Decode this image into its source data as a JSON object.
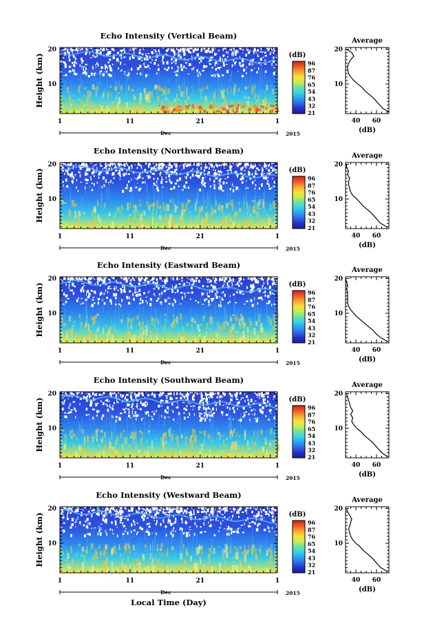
{
  "figure": {
    "xlabel": "Local Time (Day)",
    "month_label": "Dec",
    "year_label": "2015",
    "ylabel": "Height (km)",
    "colorbar_unit": "(dB)",
    "average_title": "Average",
    "average_xlabel": "(dB)"
  },
  "chart_data": [
    {
      "type": "heatmap",
      "title": "Echo Intensity (Vertical Beam)",
      "xlabel": "Dec",
      "ylabel": "Height (km)",
      "x_ticks": [
        "1",
        "11",
        "21",
        "1"
      ],
      "xlim": [
        1,
        32
      ],
      "y_ticks": [
        "10",
        "20"
      ],
      "ylim": [
        1.5,
        20.5
      ],
      "colorbar": {
        "label": "(dB)",
        "ticks": [
          "96",
          "87",
          "76",
          "65",
          "54",
          "43",
          "32",
          "21"
        ],
        "range": [
          21,
          96
        ]
      },
      "profile": {
        "title": "Average",
        "xlabel": "(dB)",
        "x_ticks": [
          "40",
          "60"
        ],
        "xlim": [
          30,
          72
        ],
        "ylim": [
          1.5,
          20.5
        ],
        "heights": [
          2,
          3,
          4,
          5,
          6,
          7,
          8,
          9,
          10,
          11,
          12,
          13,
          14,
          15,
          16,
          17,
          18,
          19,
          20
        ],
        "values": [
          72,
          66,
          63,
          60,
          57,
          53,
          49,
          46,
          42,
          38,
          35,
          33,
          32,
          32,
          33,
          35,
          38,
          36,
          31
        ]
      }
    },
    {
      "type": "heatmap",
      "title": "Echo Intensity (Northward Beam)",
      "xlabel": "Dec",
      "ylabel": "Height (km)",
      "x_ticks": [
        "1",
        "11",
        "21",
        "1"
      ],
      "xlim": [
        1,
        32
      ],
      "y_ticks": [
        "10",
        "20"
      ],
      "ylim": [
        1.5,
        20.5
      ],
      "colorbar": {
        "label": "(dB)",
        "ticks": [
          "96",
          "87",
          "76",
          "65",
          "54",
          "43",
          "32",
          "21"
        ],
        "range": [
          21,
          96
        ]
      },
      "profile": {
        "title": "Average",
        "xlabel": "(dB)",
        "x_ticks": [
          "40",
          "60"
        ],
        "xlim": [
          30,
          72
        ],
        "ylim": [
          1.5,
          20.5
        ],
        "heights": [
          2,
          3,
          4,
          5,
          6,
          7,
          8,
          9,
          10,
          11,
          12,
          13,
          14,
          15,
          16,
          17,
          18,
          19,
          20
        ],
        "values": [
          70,
          64,
          61,
          58,
          55,
          51,
          47,
          44,
          41,
          37,
          35,
          34,
          33,
          33,
          34,
          32,
          33,
          31,
          31
        ]
      }
    },
    {
      "type": "heatmap",
      "title": "Echo Intensity (Eastward Beam)",
      "xlabel": "Dec",
      "ylabel": "Height (km)",
      "x_ticks": [
        "1",
        "11",
        "21",
        "1"
      ],
      "xlim": [
        1,
        32
      ],
      "y_ticks": [
        "10",
        "20"
      ],
      "ylim": [
        1.5,
        20.5
      ],
      "colorbar": {
        "label": "(dB)",
        "ticks": [
          "96",
          "87",
          "76",
          "65",
          "54",
          "43",
          "32",
          "21"
        ],
        "range": [
          21,
          96
        ]
      },
      "profile": {
        "title": "Average",
        "xlabel": "(dB)",
        "x_ticks": [
          "40",
          "60"
        ],
        "xlim": [
          30,
          72
        ],
        "ylim": [
          1.5,
          20.5
        ],
        "heights": [
          2,
          3,
          4,
          5,
          6,
          7,
          8,
          9,
          10,
          11,
          12,
          13,
          14,
          15,
          16,
          17,
          18,
          19,
          20
        ],
        "values": [
          70,
          64,
          60,
          57,
          53,
          49,
          45,
          41,
          38,
          35,
          33,
          32,
          32,
          32,
          32,
          31,
          32,
          31,
          30
        ]
      }
    },
    {
      "type": "heatmap",
      "title": "Echo Intensity (Southward Beam)",
      "xlabel": "Dec",
      "ylabel": "Height (km)",
      "x_ticks": [
        "1",
        "11",
        "21",
        "1"
      ],
      "xlim": [
        1,
        32
      ],
      "y_ticks": [
        "10",
        "20"
      ],
      "ylim": [
        1.5,
        20.5
      ],
      "colorbar": {
        "label": "(dB)",
        "ticks": [
          "96",
          "87",
          "76",
          "65",
          "54",
          "43",
          "32",
          "21"
        ],
        "range": [
          21,
          96
        ]
      },
      "profile": {
        "title": "Average",
        "xlabel": "(dB)",
        "x_ticks": [
          "40",
          "60"
        ],
        "xlim": [
          30,
          72
        ],
        "ylim": [
          1.5,
          20.5
        ],
        "heights": [
          2,
          3,
          4,
          5,
          6,
          7,
          8,
          9,
          10,
          11,
          12,
          13,
          14,
          15,
          16,
          17,
          18,
          19,
          20
        ],
        "values": [
          70,
          65,
          62,
          59,
          56,
          52,
          48,
          45,
          41,
          38,
          36,
          37,
          35,
          37,
          35,
          34,
          33,
          32,
          31
        ]
      }
    },
    {
      "type": "heatmap",
      "title": "Echo Intensity (Westward Beam)",
      "xlabel": "Dec",
      "ylabel": "Height (km)",
      "x_ticks": [
        "1",
        "11",
        "21",
        "1"
      ],
      "xlim": [
        1,
        32
      ],
      "y_ticks": [
        "10",
        "20"
      ],
      "ylim": [
        1.5,
        20.5
      ],
      "colorbar": {
        "label": "(dB)",
        "ticks": [
          "96",
          "87",
          "76",
          "65",
          "54",
          "43",
          "32",
          "21"
        ],
        "range": [
          21,
          96
        ]
      },
      "profile": {
        "title": "Average",
        "xlabel": "(dB)",
        "x_ticks": [
          "40",
          "60"
        ],
        "xlim": [
          30,
          72
        ],
        "ylim": [
          1.5,
          20.5
        ],
        "heights": [
          2,
          3,
          4,
          5,
          6,
          7,
          8,
          9,
          10,
          11,
          12,
          13,
          14,
          15,
          16,
          17,
          18,
          19,
          20
        ],
        "values": [
          70,
          64,
          61,
          58,
          55,
          51,
          47,
          44,
          40,
          37,
          35,
          34,
          33,
          34,
          35,
          36,
          34,
          32,
          31
        ]
      }
    }
  ]
}
